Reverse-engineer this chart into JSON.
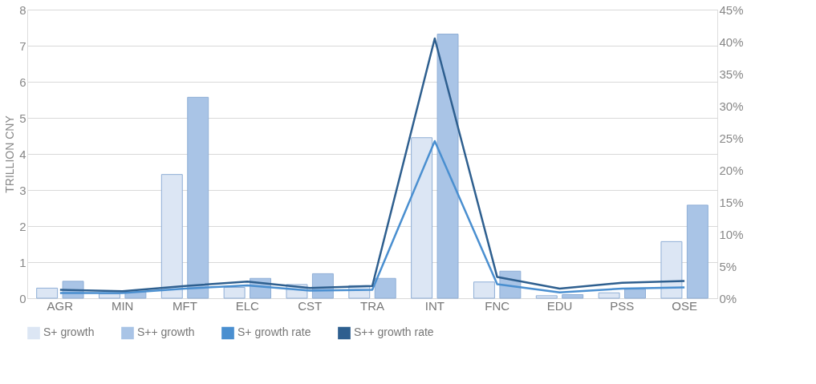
{
  "chart_data": {
    "type": "bar",
    "ylabel": "TRILLION CNY",
    "categories": [
      "AGR",
      "MIN",
      "MFT",
      "ELC",
      "CST",
      "TRA",
      "INT",
      "FNC",
      "EDU",
      "PSS",
      "OSE"
    ],
    "series": [
      {
        "name": "S+ growth",
        "color": "#dce6f4",
        "values": [
          0.28,
          0.12,
          3.43,
          0.3,
          0.38,
          0.35,
          4.45,
          0.45,
          0.07,
          0.15,
          1.57
        ]
      },
      {
        "name": "S++ growth",
        "color": "#a9c4e6",
        "values": [
          0.47,
          0.17,
          5.57,
          0.55,
          0.68,
          0.55,
          7.32,
          0.75,
          0.1,
          0.25,
          2.58
        ]
      },
      {
        "name": "S+ growth rate",
        "type": "line",
        "axis": "y2",
        "color": "#4a8fd0",
        "values": [
          0.8,
          0.8,
          1.5,
          2.0,
          1.2,
          1.3,
          24.5,
          2.2,
          0.9,
          1.5,
          1.7
        ]
      },
      {
        "name": "S++ growth rate",
        "type": "line",
        "axis": "y2",
        "color": "#2e5f8f",
        "values": [
          1.3,
          1.1,
          1.9,
          2.6,
          1.6,
          1.9,
          40.5,
          3.3,
          1.5,
          2.4,
          2.7
        ]
      }
    ],
    "ylim": [
      0,
      8
    ],
    "yticks": [
      0,
      1,
      2,
      3,
      4,
      5,
      6,
      7,
      8
    ],
    "y2lim": [
      0,
      45
    ],
    "y2ticks": [
      {
        "value": 0,
        "label": "0%"
      },
      {
        "value": 5,
        "label": "5%"
      },
      {
        "value": 10,
        "label": "10%"
      },
      {
        "value": 15,
        "label": "15%"
      },
      {
        "value": 20,
        "label": "20%"
      },
      {
        "value": 25,
        "label": "25%"
      },
      {
        "value": 30,
        "label": "30%"
      },
      {
        "value": 35,
        "label": "35%"
      },
      {
        "value": 40,
        "label": "40%"
      },
      {
        "value": 45,
        "label": "45%"
      }
    ],
    "grid": "y",
    "legend": "bottom"
  }
}
